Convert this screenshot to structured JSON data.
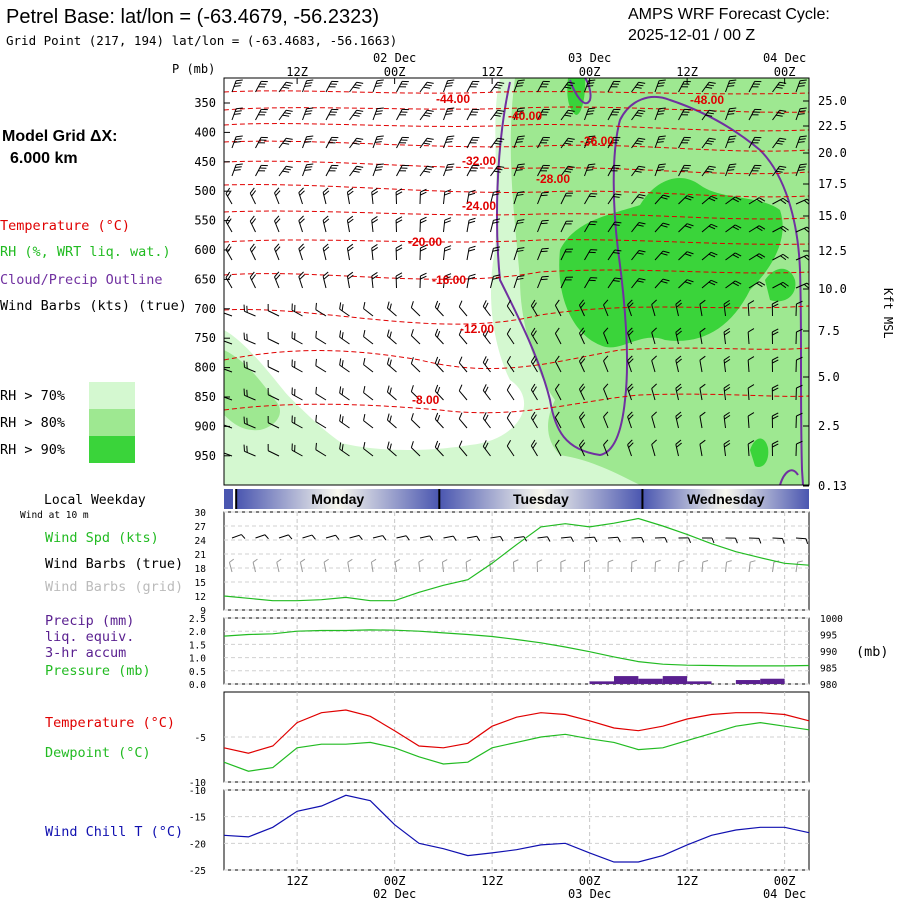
{
  "header": {
    "title": "Petrel Base:  lat/lon = (-63.4679, -56.2323)",
    "grid_point": "Grid Point (217, 194) lat/lon = (-63.4683, -56.1663)",
    "cycle_label": "AMPS WRF Forecast Cycle:",
    "cycle_value": "2025-12-01 / 00  Z"
  },
  "left_legend": {
    "model_grid_label": "Model Grid ΔX:",
    "model_grid_value": "6.000 km",
    "items": [
      {
        "label": "Temperature (°C)",
        "color": "#e00000"
      },
      {
        "label": "RH (%, WRT liq. wat.)",
        "color": "#22bb22"
      },
      {
        "label": "Cloud/Precip Outline",
        "color": "#7030a0"
      },
      {
        "label": "Wind Barbs (kts) (true)",
        "color": "#000000"
      }
    ],
    "rh_levels": [
      {
        "label": "RH > 70%",
        "color": "#d4f8d0"
      },
      {
        "label": "RH > 80%",
        "color": "#9ee891"
      },
      {
        "label": "RH > 90%",
        "color": "#3ad43a"
      }
    ]
  },
  "colors": {
    "temperature": "#e00000",
    "dewpoint": "#22bb22",
    "wind_chill": "#1010b0",
    "pressure": "#22bb22",
    "precip_bar": "#5a2090",
    "outline": "#7030a0"
  },
  "chart_data": [
    {
      "name": "cross-section",
      "type": "heatmap",
      "x_range_hours": [
        0,
        72
      ],
      "y_label_left": "P (mb)",
      "y_label_right": "Kft MSL",
      "top_ticks": [
        {
          "hour": 9,
          "label": "12Z",
          "date": ""
        },
        {
          "hour": 21,
          "label": "00Z",
          "date": "02 Dec"
        },
        {
          "hour": 33,
          "label": "12Z",
          "date": ""
        },
        {
          "hour": 45,
          "label": "00Z",
          "date": "03 Dec"
        },
        {
          "hour": 57,
          "label": "12Z",
          "date": ""
        },
        {
          "hour": 69,
          "label": "00Z",
          "date": "04 Dec"
        }
      ],
      "pressure_ticks": [
        "350",
        "400",
        "450",
        "500",
        "550",
        "600",
        "650",
        "700",
        "750",
        "800",
        "850",
        "900",
        "950"
      ],
      "height_ticks": [
        "25.0",
        "22.5",
        "20.0",
        "17.5",
        "15.0",
        "12.5",
        "10.0",
        "7.5",
        "5.0",
        "2.5",
        "0.13"
      ],
      "temperature_contour_labels": [
        "-44.00",
        "-40.00",
        "-36.00",
        "-48.00",
        "-32.00",
        "-28.00",
        "-24.00",
        "-20.00",
        "-16.00",
        "-12.00",
        "-8.00"
      ]
    },
    {
      "name": "day-bar",
      "type": "table",
      "title": "Local Weekday",
      "subtitle": "Wind at 10 m",
      "days": [
        "Monday",
        "Tuesday",
        "Wednesday"
      ]
    },
    {
      "name": "wind-speed",
      "type": "line",
      "title": "Wind Spd (kts)",
      "labels": [
        "Wind Spd (kts)",
        "Wind Barbs (true)",
        "Wind Barbs (grid)"
      ],
      "ylim": [
        9,
        30
      ],
      "y_ticks": [
        "30",
        "27",
        "24",
        "21",
        "18",
        "15",
        "12",
        "9"
      ],
      "x": [
        0,
        3,
        6,
        9,
        12,
        15,
        18,
        21,
        24,
        27,
        30,
        33,
        36,
        39,
        42,
        45,
        48,
        51,
        54,
        57,
        60,
        63,
        66,
        69,
        72
      ],
      "values": [
        12,
        11.5,
        11,
        11,
        11.2,
        11.7,
        11,
        11,
        12.8,
        14.3,
        15.5,
        19,
        23,
        26.8,
        27.5,
        26.8,
        27.6,
        28.6,
        27,
        25.2,
        23.2,
        21.5,
        20.2,
        19,
        18.6
      ]
    },
    {
      "name": "precip-pressure",
      "type": "line",
      "title": "Precip (mm)",
      "labels": [
        "Precip (mm)",
        "liq. equiv.",
        "3-hr accum",
        "Pressure (mb)"
      ],
      "precip_ylim": [
        0,
        2.5
      ],
      "precip_ticks": [
        "2.5",
        "2.0",
        "1.5",
        "1.0",
        "0.5",
        "0.0"
      ],
      "pressure_ylim": [
        980,
        1000
      ],
      "pressure_ticks": [
        "1000",
        "995",
        "990",
        "985",
        "980"
      ],
      "pressure_unit": "(mb)",
      "x": [
        0,
        3,
        6,
        9,
        12,
        15,
        18,
        21,
        24,
        27,
        30,
        33,
        36,
        39,
        42,
        45,
        48,
        51,
        54,
        57,
        60,
        63,
        66,
        69,
        72
      ],
      "pressure": [
        994.5,
        995,
        995.2,
        996,
        996.2,
        996.2,
        996.4,
        996.3,
        996,
        995.5,
        995,
        994.4,
        993.5,
        992.5,
        991.2,
        989.8,
        988.2,
        986.8,
        986,
        985.7,
        985.6,
        985.5,
        985.5,
        985.5,
        985.6
      ],
      "precip_bins": [
        {
          "start": 45,
          "end": 48,
          "value": 0.1
        },
        {
          "start": 48,
          "end": 51,
          "value": 0.3
        },
        {
          "start": 51,
          "end": 54,
          "value": 0.2
        },
        {
          "start": 54,
          "end": 57,
          "value": 0.3
        },
        {
          "start": 57,
          "end": 60,
          "value": 0.1
        },
        {
          "start": 60,
          "end": 63,
          "value": 0.0
        },
        {
          "start": 63,
          "end": 66,
          "value": 0.15
        },
        {
          "start": 66,
          "end": 69,
          "value": 0.2
        }
      ]
    },
    {
      "name": "temp-dewpoint",
      "type": "line",
      "title": "Temperature (°C)",
      "labels": [
        "Temperature (°C)",
        "Dewpoint (°C)"
      ],
      "ylim": [
        -10,
        0
      ],
      "y_ticks": [
        "-5",
        "-10"
      ],
      "x": [
        0,
        3,
        6,
        9,
        12,
        15,
        18,
        21,
        24,
        27,
        30,
        33,
        36,
        39,
        42,
        45,
        48,
        51,
        54,
        57,
        60,
        63,
        66,
        69,
        72
      ],
      "series": [
        {
          "name": "Temperature",
          "values": [
            -6.2,
            -6.8,
            -6.0,
            -3.4,
            -2.3,
            -2.0,
            -2.7,
            -4.3,
            -6.0,
            -6.2,
            -5.7,
            -3.8,
            -2.8,
            -2.3,
            -2.5,
            -3.2,
            -4.0,
            -4.3,
            -3.8,
            -3.0,
            -2.5,
            -2.3,
            -2.3,
            -2.5,
            -3.2
          ]
        },
        {
          "name": "Dewpoint",
          "values": [
            -7.8,
            -8.8,
            -8.4,
            -6.2,
            -5.8,
            -5.8,
            -5.6,
            -6.2,
            -7.2,
            -8.0,
            -7.8,
            -6.2,
            -5.6,
            -5.0,
            -4.7,
            -5.2,
            -5.6,
            -6.4,
            -6.2,
            -5.4,
            -4.6,
            -3.8,
            -3.4,
            -3.8,
            -4.2
          ]
        }
      ]
    },
    {
      "name": "wind-chill",
      "type": "line",
      "title": "Wind Chill T (°C)",
      "labels": [
        "Wind Chill T (°C)"
      ],
      "ylim": [
        -25,
        -10
      ],
      "y_ticks": [
        "-10",
        "-15",
        "-20",
        "-25"
      ],
      "x": [
        0,
        3,
        6,
        9,
        12,
        15,
        18,
        21,
        24,
        27,
        30,
        33,
        36,
        39,
        42,
        45,
        48,
        51,
        54,
        57,
        60,
        63,
        66,
        69,
        72
      ],
      "values": [
        -18.5,
        -18.8,
        -17,
        -14,
        -13,
        -11,
        -12,
        -16.5,
        -20,
        -21,
        -22.3,
        -21.8,
        -21.2,
        -20.3,
        -20,
        -21.8,
        -23.5,
        -23.5,
        -22.3,
        -20.3,
        -18.5,
        -17.5,
        -17,
        -17,
        -18
      ]
    }
  ],
  "bottom_axis": {
    "ticks": [
      {
        "hour": 9,
        "label": "12Z",
        "date": ""
      },
      {
        "hour": 21,
        "label": "00Z",
        "date": "02 Dec"
      },
      {
        "hour": 33,
        "label": "12Z",
        "date": ""
      },
      {
        "hour": 45,
        "label": "00Z",
        "date": "03 Dec"
      },
      {
        "hour": 57,
        "label": "12Z",
        "date": ""
      },
      {
        "hour": 69,
        "label": "00Z",
        "date": "04 Dec"
      }
    ]
  }
}
